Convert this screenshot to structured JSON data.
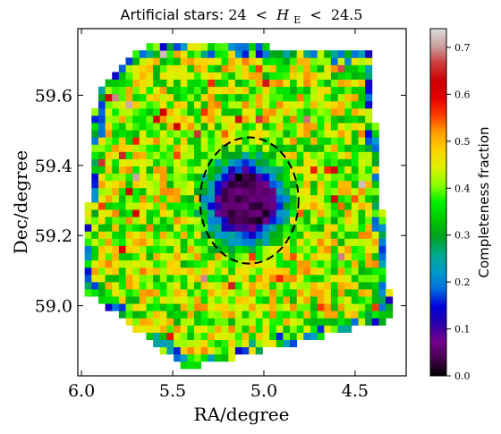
{
  "chart_data": {
    "type": "heatmap",
    "title": "Artificial stars: 24 < H_E < 24.5",
    "title_parts": {
      "prefix": "Artificial stars: ",
      "low": "24",
      "lt1": "<",
      "var": "H",
      "sub": "E",
      "lt2": "<",
      "high": "24.5"
    },
    "xlabel": "RA/degree",
    "ylabel": "Dec/degree",
    "x_inverted": true,
    "xlim": [
      6.02,
      4.22
    ],
    "ylim": [
      58.8,
      59.79
    ],
    "x_ticks": [
      6.0,
      5.5,
      5.0,
      4.5
    ],
    "x_tick_labels": [
      "6.0",
      "5.5",
      "5.0",
      "4.5"
    ],
    "y_ticks": [
      59.0,
      59.2,
      59.4,
      59.6
    ],
    "y_tick_labels": [
      "59.0",
      "59.2",
      "59.4",
      "59.6"
    ],
    "colorbar": {
      "label": "Completeness fraction",
      "min": 0.0,
      "max": 0.74,
      "ticks": [
        0.0,
        0.1,
        0.2,
        0.3,
        0.4,
        0.5,
        0.6,
        0.7
      ],
      "tick_labels": [
        "0.0",
        "0.1",
        "0.2",
        "0.3",
        "0.4",
        "0.5",
        "0.6",
        "0.7"
      ],
      "colormap": "nipy_spectral"
    },
    "field_corners_radec": [
      [
        5.62,
        59.76
      ],
      [
        4.42,
        59.72
      ],
      [
        4.3,
        58.96
      ],
      [
        5.42,
        58.82
      ],
      [
        6.0,
        59.05
      ],
      [
        5.92,
        59.61
      ]
    ],
    "grid": {
      "ra_bins": 48,
      "dec_bins": 48,
      "ra_range": [
        6.02,
        4.22
      ],
      "dec_range": [
        58.8,
        59.79
      ]
    },
    "trend": {
      "background_level": 0.42,
      "edge_level": 0.3,
      "hole_center_radec": [
        5.1,
        59.3
      ],
      "hole_radius_ra": 0.27,
      "hole_radius_dec": 0.145,
      "hole_min_level": 0.0
    },
    "annotations": [
      {
        "type": "dashed-circle",
        "center_radec": [
          5.08,
          59.3
        ],
        "radius_ra": 0.27,
        "radius_dec": 0.18
      }
    ],
    "grid_lines": false,
    "legend": "colorbar-right"
  }
}
